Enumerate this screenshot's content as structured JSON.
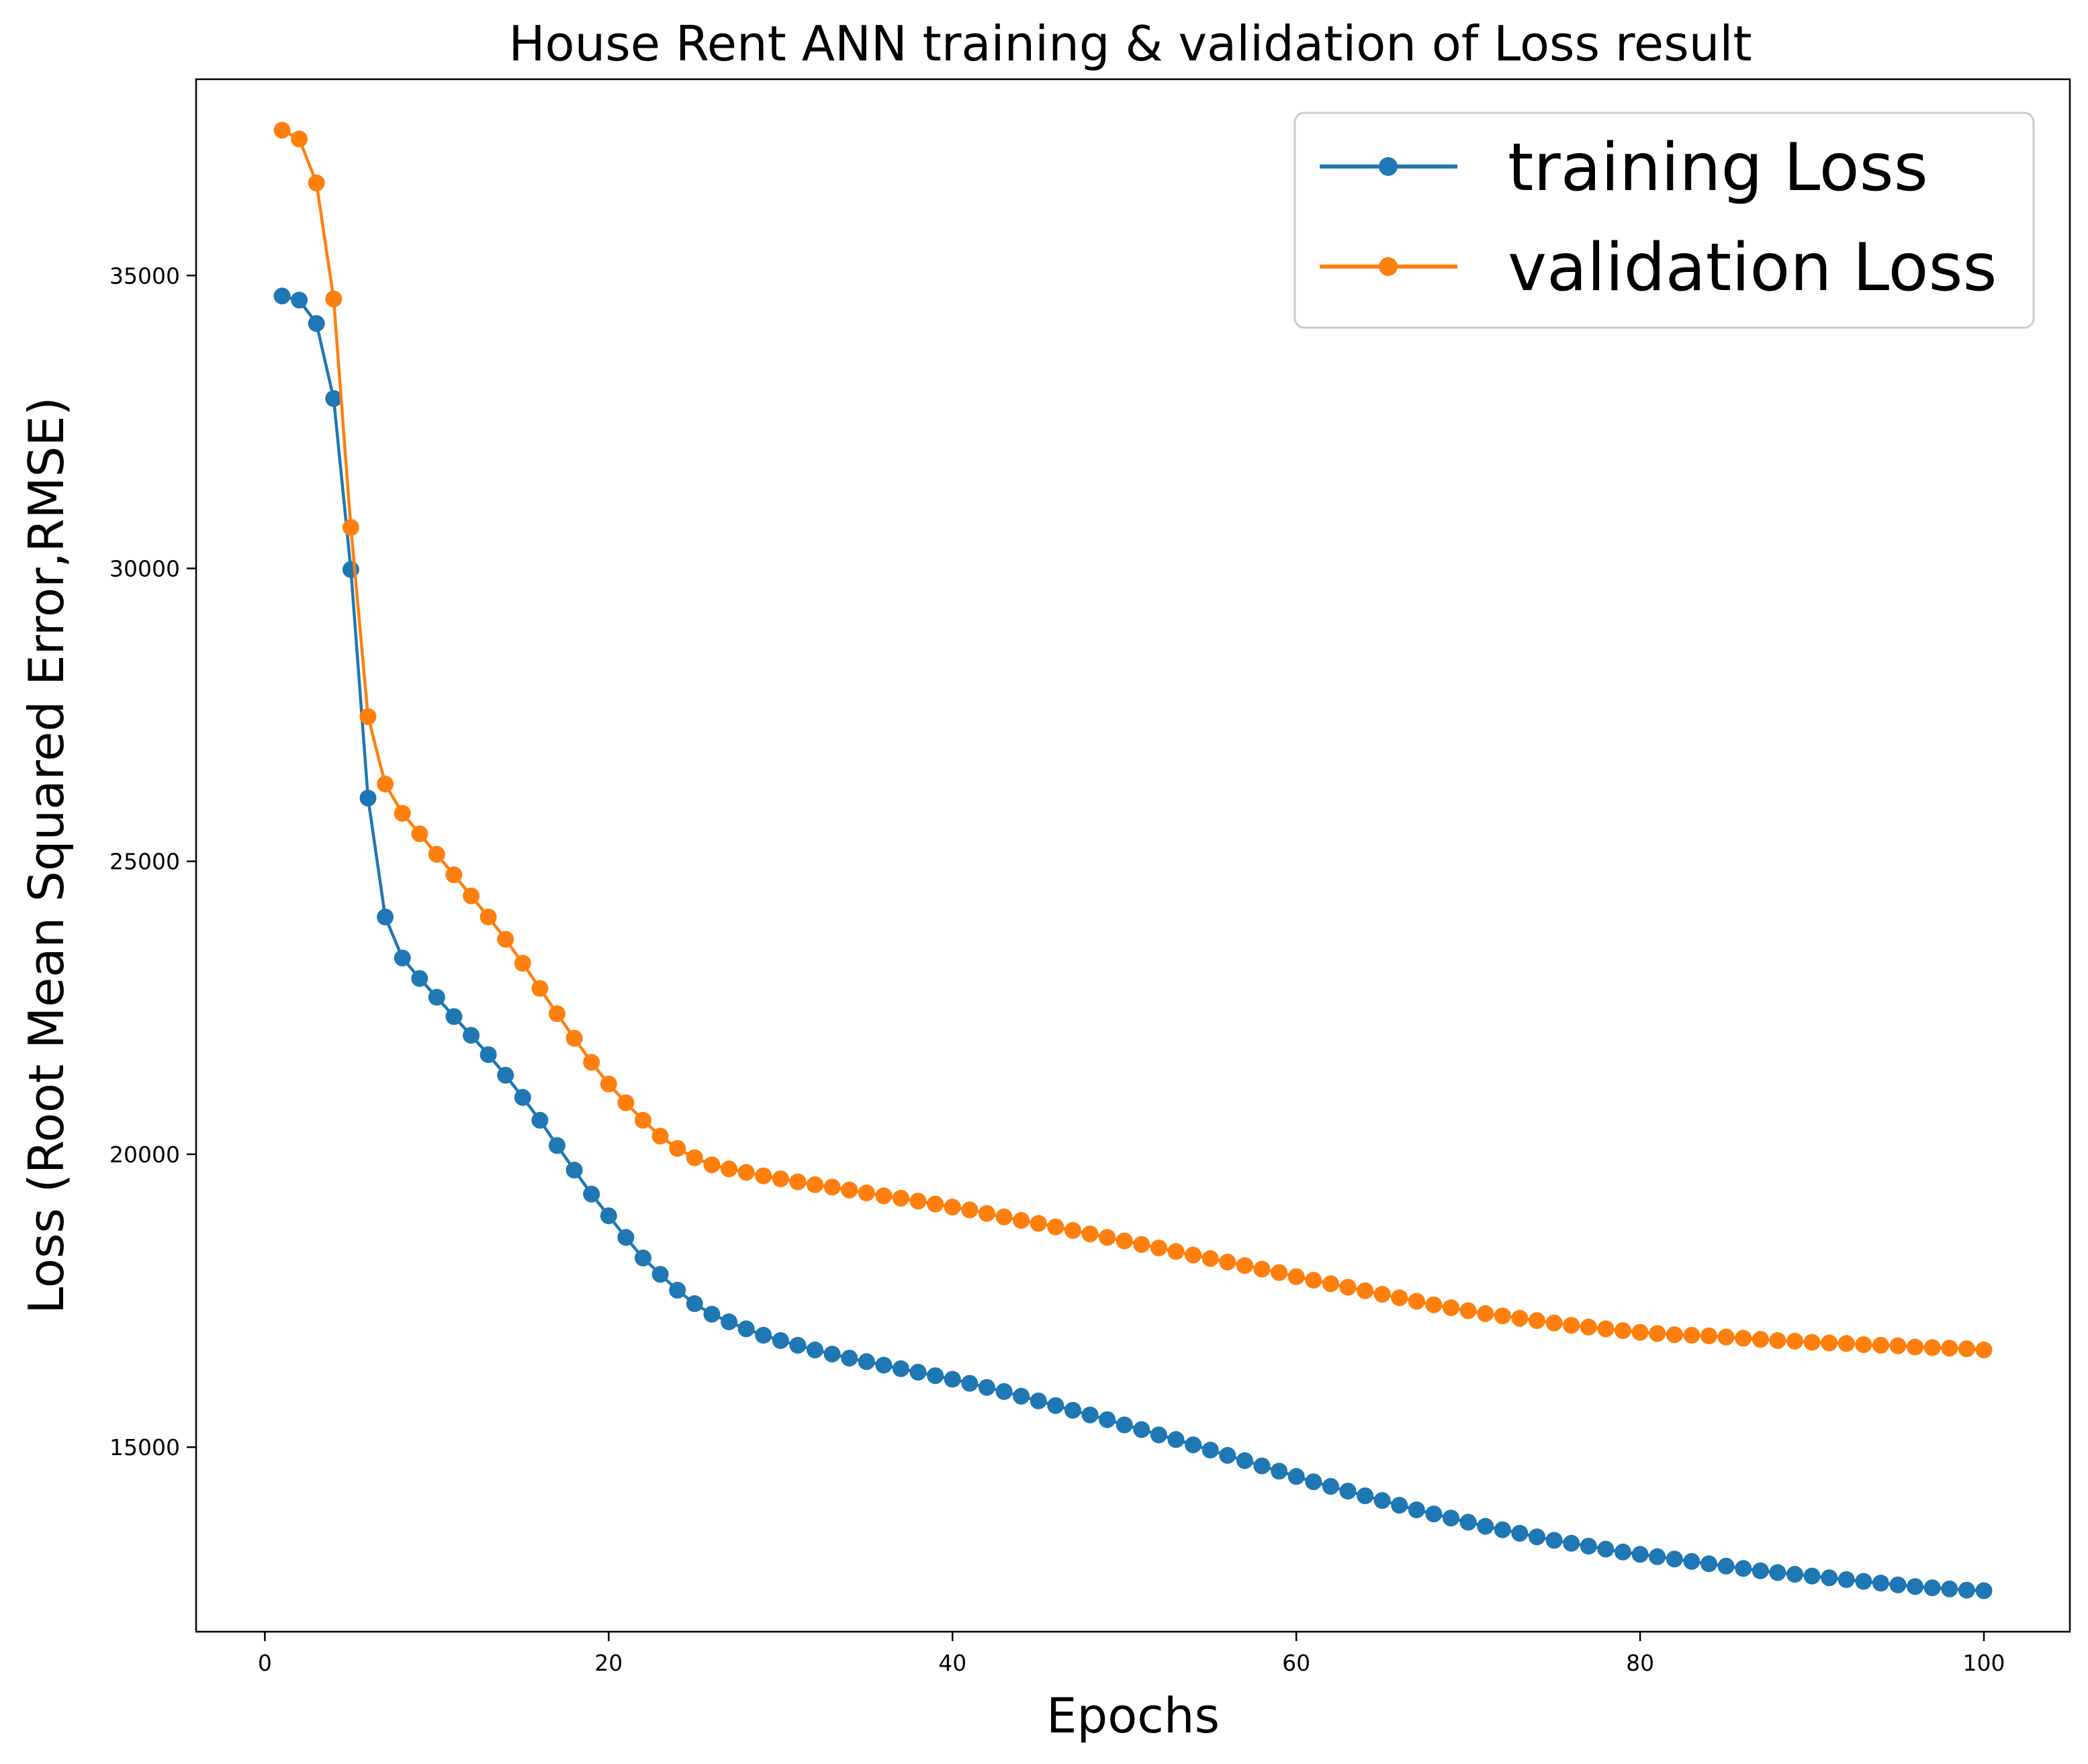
{
  "chart_data": {
    "type": "line",
    "title": "House Rent ANN training & validation of Loss result",
    "xlabel": "Epochs",
    "ylabel": "Loss (Root Mean Squared Error,RMSE)",
    "xlim": [
      -4,
      105
    ],
    "ylim": [
      11850,
      38350
    ],
    "xticks": [
      0,
      20,
      40,
      60,
      80,
      100
    ],
    "yticks": [
      15000,
      20000,
      25000,
      30000,
      35000
    ],
    "grid": false,
    "legend_position": "top-right",
    "series": [
      {
        "name": "training Loss",
        "color": "#1f77b4",
        "marker": "circle",
        "values": [
          34650,
          34580,
          34180,
          32900,
          29980,
          26080,
          24050,
          23350,
          23000,
          22680,
          22350,
          22030,
          21700,
          21350,
          20970,
          20580,
          20150,
          19730,
          19320,
          18950,
          18580,
          18230,
          17950,
          17680,
          17450,
          17270,
          17140,
          17020,
          16910,
          16820,
          16740,
          16660,
          16590,
          16520,
          16460,
          16400,
          16340,
          16280,
          16220,
          16160,
          16090,
          16020,
          15950,
          15870,
          15790,
          15710,
          15630,
          15550,
          15470,
          15380,
          15300,
          15210,
          15130,
          15040,
          14950,
          14860,
          14770,
          14680,
          14590,
          14500,
          14410,
          14330,
          14250,
          14170,
          14090,
          14010,
          13930,
          13860,
          13790,
          13720,
          13650,
          13590,
          13530,
          13470,
          13410,
          13360,
          13310,
          13260,
          13210,
          13170,
          13130,
          13090,
          13050,
          13010,
          12970,
          12930,
          12890,
          12860,
          12830,
          12800,
          12770,
          12740,
          12710,
          12680,
          12650,
          12620,
          12600,
          12580,
          12560,
          12550
        ]
      },
      {
        "name": "validation Loss",
        "color": "#ff7f0e",
        "marker": "circle",
        "values": [
          37480,
          37330,
          36580,
          34600,
          30700,
          27470,
          26320,
          25820,
          25470,
          25120,
          24770,
          24410,
          24050,
          23670,
          23260,
          22830,
          22400,
          21980,
          21570,
          21200,
          20880,
          20580,
          20310,
          20100,
          19940,
          19820,
          19750,
          19690,
          19630,
          19580,
          19530,
          19480,
          19440,
          19390,
          19340,
          19290,
          19250,
          19200,
          19150,
          19100,
          19050,
          18990,
          18930,
          18870,
          18820,
          18760,
          18700,
          18640,
          18580,
          18520,
          18460,
          18400,
          18340,
          18280,
          18220,
          18160,
          18100,
          18040,
          17980,
          17910,
          17850,
          17790,
          17730,
          17670,
          17610,
          17550,
          17490,
          17430,
          17380,
          17330,
          17280,
          17240,
          17200,
          17160,
          17120,
          17080,
          17050,
          17020,
          16990,
          16960,
          16940,
          16920,
          16910,
          16900,
          16880,
          16860,
          16840,
          16820,
          16810,
          16790,
          16780,
          16770,
          16750,
          16740,
          16730,
          16710,
          16700,
          16690,
          16680,
          16660
        ]
      }
    ]
  }
}
